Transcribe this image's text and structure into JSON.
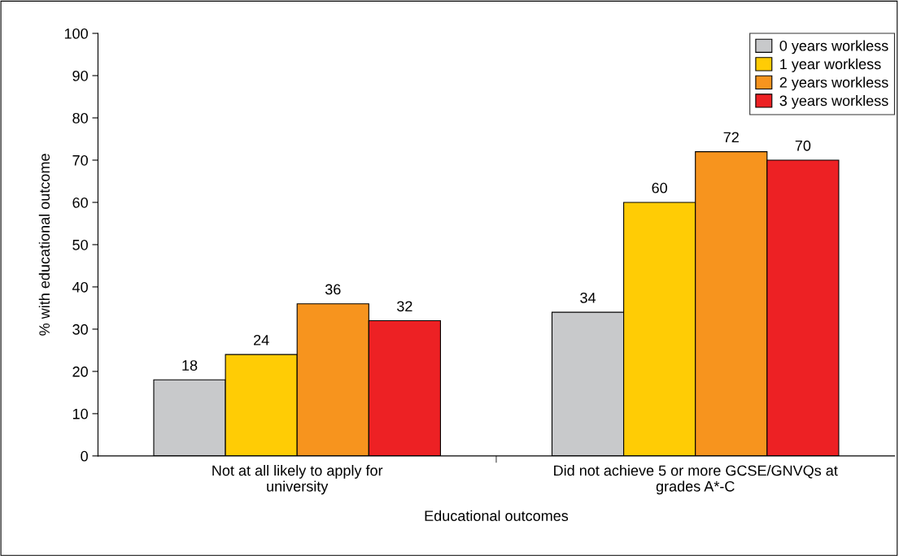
{
  "chart_data": {
    "type": "bar",
    "xlabel": "Educational outcomes",
    "ylabel": "% with educational outcome",
    "categories": [
      "Not at all likely to apply for university",
      "Did not achieve 5 or more GCSE/GNVQs at grades A*-C"
    ],
    "series": [
      {
        "name": "0 years workless",
        "color": "#c8c9cb",
        "values": [
          18,
          34
        ]
      },
      {
        "name": "1 year workless",
        "color": "#ffcc05",
        "values": [
          24,
          60
        ]
      },
      {
        "name": "2 years workless",
        "color": "#f7941e",
        "values": [
          36,
          72
        ]
      },
      {
        "name": "3 years workless",
        "color": "#ed2124",
        "values": [
          32,
          70
        ]
      }
    ],
    "ylim": [
      0,
      100
    ],
    "yticks": [
      0,
      10,
      20,
      30,
      40,
      50,
      60,
      70,
      80,
      90,
      100
    ],
    "grid": false,
    "legend": "top right",
    "data_labels": true
  }
}
